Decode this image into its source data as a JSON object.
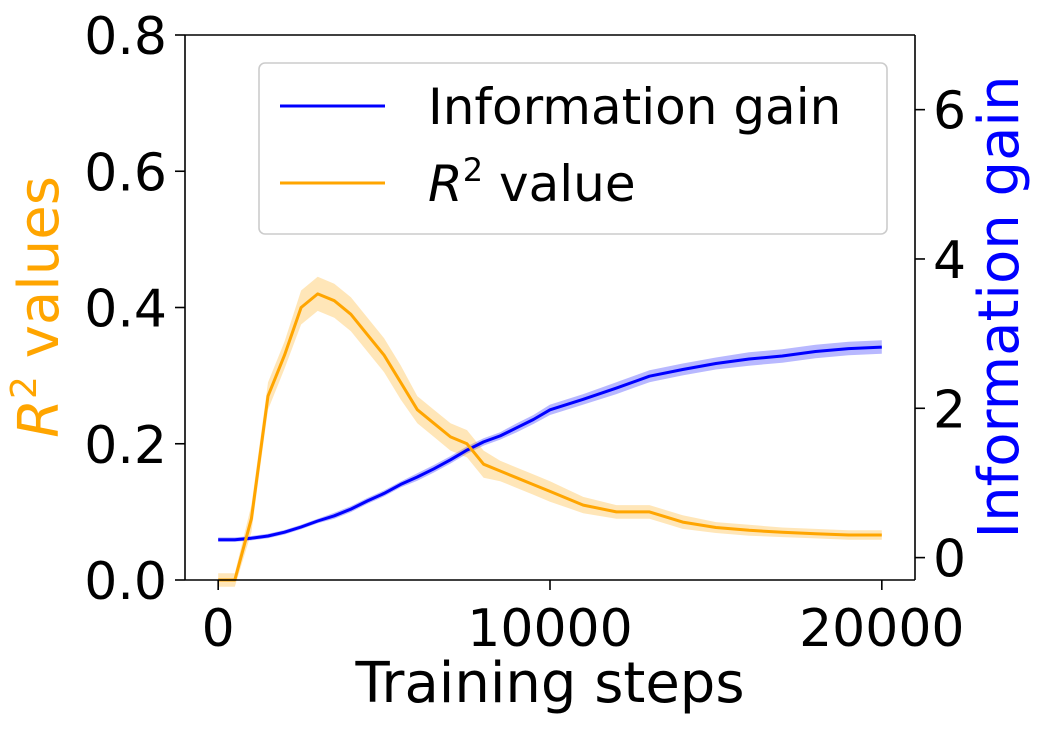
{
  "chart_data": {
    "type": "line",
    "title": "",
    "xlabel": "Training steps",
    "ylabel_left": {
      "base": "R",
      "sup": "2",
      "rest": " values"
    },
    "ylabel_right": "Information gain",
    "xlim": [
      -1000,
      21000
    ],
    "ylim_left": [
      0,
      0.8
    ],
    "ylim_right": [
      -0.3,
      7.0
    ],
    "xticks": [
      0,
      10000,
      20000
    ],
    "xtick_labels": [
      "0",
      "10000",
      "20000"
    ],
    "yticks_left": [
      0.0,
      0.2,
      0.4,
      0.6,
      0.8
    ],
    "ytick_labels_left": [
      "0.0",
      "0.2",
      "0.4",
      "0.6",
      "0.8"
    ],
    "yticks_right": [
      0,
      2,
      4,
      6
    ],
    "ytick_labels_right": [
      "0",
      "2",
      "4",
      "6"
    ],
    "grid": false,
    "legend_position": "top-right",
    "colors": {
      "r2": "#ffa500",
      "info": "#0000ff",
      "text": "#000000"
    },
    "series": [
      {
        "name": "Information gain",
        "legend_label": "Information gain",
        "axis": "right",
        "color": "#0000ff",
        "x": [
          0,
          500,
          1000,
          1500,
          2000,
          2500,
          3000,
          3500,
          4000,
          4500,
          5000,
          5500,
          6000,
          6500,
          7000,
          7500,
          8000,
          8500,
          9000,
          9500,
          10000,
          11000,
          12000,
          13000,
          14000,
          15000,
          16000,
          17000,
          18000,
          19000,
          20000
        ],
        "y": [
          0.24,
          0.24,
          0.26,
          0.29,
          0.34,
          0.41,
          0.49,
          0.56,
          0.65,
          0.76,
          0.86,
          0.98,
          1.08,
          1.19,
          1.31,
          1.44,
          1.55,
          1.63,
          1.74,
          1.85,
          1.98,
          2.12,
          2.27,
          2.43,
          2.52,
          2.6,
          2.66,
          2.7,
          2.76,
          2.8,
          2.82
        ],
        "band": [
          0.03,
          0.03,
          0.03,
          0.03,
          0.03,
          0.03,
          0.03,
          0.04,
          0.04,
          0.04,
          0.04,
          0.04,
          0.05,
          0.05,
          0.05,
          0.05,
          0.05,
          0.05,
          0.06,
          0.06,
          0.07,
          0.07,
          0.08,
          0.08,
          0.08,
          0.08,
          0.09,
          0.09,
          0.09,
          0.09,
          0.09
        ]
      },
      {
        "name": "R2 value",
        "legend_label": {
          "base": "R",
          "sup": "2",
          "rest": " value"
        },
        "axis": "left",
        "color": "#ffa500",
        "x": [
          0,
          500,
          1000,
          1500,
          2000,
          2500,
          3000,
          3500,
          4000,
          4500,
          5000,
          5500,
          6000,
          6500,
          7000,
          7500,
          8000,
          8500,
          9000,
          9500,
          10000,
          11000,
          12000,
          13000,
          14000,
          15000,
          16000,
          17000,
          18000,
          19000,
          20000
        ],
        "y": [
          0.0,
          0.0,
          0.09,
          0.27,
          0.33,
          0.4,
          0.42,
          0.41,
          0.39,
          0.36,
          0.33,
          0.29,
          0.25,
          0.23,
          0.21,
          0.2,
          0.17,
          0.16,
          0.15,
          0.14,
          0.13,
          0.11,
          0.1,
          0.1,
          0.085,
          0.077,
          0.073,
          0.07,
          0.068,
          0.066,
          0.066
        ],
        "band": [
          0.01,
          0.01,
          0.02,
          0.02,
          0.02,
          0.025,
          0.025,
          0.025,
          0.025,
          0.025,
          0.025,
          0.025,
          0.02,
          0.02,
          0.02,
          0.02,
          0.02,
          0.015,
          0.015,
          0.015,
          0.015,
          0.012,
          0.01,
          0.01,
          0.01,
          0.008,
          0.008,
          0.007,
          0.007,
          0.007,
          0.007
        ]
      }
    ]
  }
}
